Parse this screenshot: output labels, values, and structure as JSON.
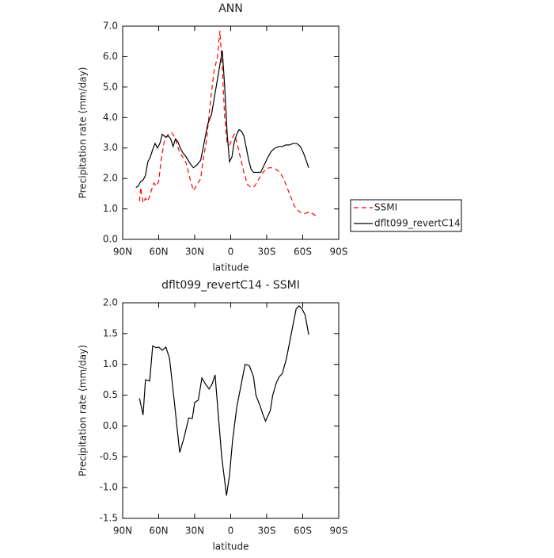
{
  "chart_data": [
    {
      "type": "line",
      "title": "ANN",
      "x_label": "latitude",
      "y_label": "Precipitation rate (mm/day)",
      "xlim": [
        90,
        -90
      ],
      "xticks": [
        {
          "value": 90,
          "label": "90N"
        },
        {
          "value": 60,
          "label": "60N"
        },
        {
          "value": 30,
          "label": "30N"
        },
        0,
        {
          "value": -30,
          "label": "30S"
        },
        {
          "value": -60,
          "label": "60S"
        },
        {
          "value": -90,
          "label": "90S"
        }
      ],
      "ylim": [
        0,
        7
      ],
      "yticks": [
        {
          "value": 0,
          "label": "0.0"
        },
        {
          "value": 1,
          "label": "1.0"
        },
        {
          "value": 2,
          "label": "2.0"
        },
        {
          "value": 3,
          "label": "3.0"
        },
        {
          "value": 4,
          "label": "4.0"
        },
        {
          "value": 5,
          "label": "5.0"
        },
        {
          "value": 6,
          "label": "6.0"
        },
        {
          "value": 7,
          "label": "7.0"
        }
      ],
      "legend": "outside-right",
      "series": [
        {
          "name": "SSMI",
          "color": "#ff0000",
          "dashed": true,
          "x": [
            76,
            75,
            73,
            71,
            69,
            67,
            64,
            62,
            60,
            58,
            55,
            52,
            49,
            46,
            43,
            40,
            37,
            34,
            31,
            28,
            25,
            23,
            20,
            17,
            14,
            11,
            9,
            7,
            5,
            3,
            1,
            -1,
            -3,
            -5,
            -8,
            -11,
            -14,
            -17,
            -20,
            -23,
            -26,
            -29,
            -32,
            -35,
            -38,
            -41,
            -44,
            -47,
            -50,
            -53,
            -56,
            -59,
            -62,
            -65,
            -68,
            -70,
            -73
          ],
          "values": [
            1.25,
            1.7,
            1.2,
            1.35,
            1.25,
            1.5,
            1.85,
            1.75,
            1.9,
            2.6,
            3.3,
            3.45,
            3.5,
            3.3,
            2.9,
            2.7,
            2.5,
            2.0,
            1.6,
            1.8,
            2.0,
            2.6,
            3.3,
            4.5,
            5.5,
            6.0,
            6.85,
            5.6,
            4.0,
            3.2,
            3.1,
            3.3,
            3.45,
            3.2,
            2.7,
            2.2,
            1.8,
            1.7,
            1.75,
            1.95,
            2.15,
            2.3,
            2.35,
            2.35,
            2.3,
            2.2,
            2.0,
            1.7,
            1.4,
            1.1,
            0.95,
            0.87,
            0.85,
            0.9,
            0.85,
            0.8,
            0.7
          ]
        },
        {
          "name": "dflt099_revertC14",
          "color": "#000000",
          "dashed": false,
          "x": [
            79,
            77,
            75,
            73,
            71,
            69,
            67,
            65,
            63,
            61,
            59,
            57,
            54,
            52,
            50,
            48,
            46,
            44,
            42,
            40,
            37,
            34,
            31,
            28,
            25,
            22,
            19,
            16,
            13,
            10,
            7,
            5,
            3,
            1,
            -1,
            -3,
            -5,
            -7,
            -9,
            -11,
            -13,
            -15,
            -17,
            -19,
            -22,
            -25,
            -28,
            -31,
            -34,
            -37,
            -40,
            -43,
            -46,
            -49,
            -52,
            -55,
            -58,
            -61,
            -65
          ],
          "values": [
            1.7,
            1.75,
            1.9,
            1.95,
            2.1,
            2.55,
            2.7,
            2.95,
            3.15,
            3.0,
            3.15,
            3.45,
            3.35,
            3.4,
            3.3,
            3.05,
            3.3,
            3.2,
            3.0,
            2.85,
            2.7,
            2.5,
            2.35,
            2.45,
            2.6,
            3.2,
            3.8,
            4.1,
            4.8,
            5.5,
            6.2,
            5.0,
            3.5,
            2.55,
            2.7,
            3.2,
            3.45,
            3.6,
            3.55,
            3.4,
            3.0,
            2.6,
            2.3,
            2.2,
            2.2,
            2.2,
            2.45,
            2.7,
            2.9,
            3.0,
            3.05,
            3.05,
            3.1,
            3.1,
            3.15,
            3.15,
            3.05,
            2.8,
            2.35
          ]
        }
      ]
    },
    {
      "type": "line",
      "title": "dflt099_revertC14 - SSMI",
      "x_label": "latitude",
      "y_label": "Precipitation rate (mm/day)",
      "xlim": [
        90,
        -90
      ],
      "xticks": [
        {
          "value": 90,
          "label": "90N"
        },
        {
          "value": 60,
          "label": "60N"
        },
        {
          "value": 30,
          "label": "30N"
        },
        0,
        {
          "value": -30,
          "label": "30S"
        },
        {
          "value": -60,
          "label": "60S"
        },
        {
          "value": -90,
          "label": "90S"
        }
      ],
      "ylim": [
        -1.5,
        2
      ],
      "yticks": [
        -1.5,
        {
          "value": -1,
          "label": "-1.0"
        },
        -0.5,
        {
          "value": 0,
          "label": "0.0"
        },
        0.5,
        {
          "value": 1,
          "label": "1.0"
        },
        1.5,
        {
          "value": 2,
          "label": "2.0"
        }
      ],
      "series": [
        {
          "color": "#000000",
          "dashed": false,
          "x": [
            76,
            73,
            71,
            67.5,
            65,
            62,
            60,
            57,
            54,
            51,
            47,
            42.5,
            39,
            35,
            32,
            30,
            27,
            24,
            21,
            18,
            15.5,
            13,
            10,
            7.5,
            3.5,
            1,
            -1.5,
            -5,
            -8,
            -12,
            -15.5,
            -19,
            -21,
            -24,
            -27,
            -29,
            -33,
            -35,
            -38,
            -40.5,
            -43,
            -46.5,
            -49,
            -52,
            -54.5,
            -57,
            -59.5,
            -62,
            -65
          ],
          "values": [
            0.45,
            0.18,
            0.75,
            0.73,
            1.3,
            1.27,
            1.28,
            1.23,
            1.28,
            1.1,
            0.4,
            -0.43,
            -0.2,
            0.13,
            0.12,
            0.38,
            0.42,
            0.78,
            0.68,
            0.6,
            0.68,
            0.83,
            0.1,
            -0.5,
            -1.13,
            -0.8,
            -0.25,
            0.3,
            0.6,
            1.0,
            0.98,
            0.8,
            0.5,
            0.35,
            0.18,
            0.08,
            0.25,
            0.5,
            0.7,
            0.8,
            0.85,
            1.1,
            1.35,
            1.65,
            1.9,
            1.95,
            1.9,
            1.8,
            1.48
          ]
        }
      ]
    }
  ]
}
